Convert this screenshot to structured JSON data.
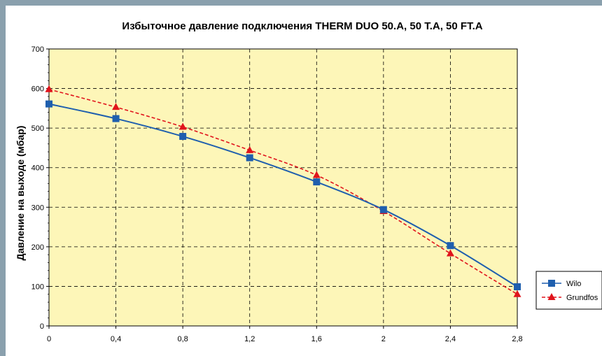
{
  "chart_data": {
    "type": "line",
    "title": "Избыточное давление подключения THERM DUO 50.A, 50 T.A, 50 FT.A",
    "xlabel": "",
    "ylabel": "Давление на выходе (мбар)",
    "x": [
      0,
      0.4,
      0.8,
      1.2,
      1.6,
      2,
      2.4,
      2.8
    ],
    "x_tick_labels": [
      "0",
      "0,4",
      "0,8",
      "1,2",
      "1,6",
      "2",
      "2,4",
      "2,8"
    ],
    "y_ticks": [
      0,
      100,
      200,
      300,
      400,
      500,
      600,
      700
    ],
    "y_tick_labels": [
      "0",
      "100",
      "200",
      "300",
      "400",
      "500",
      "600",
      "700"
    ],
    "xlim": [
      0,
      2.8
    ],
    "ylim": [
      0,
      700
    ],
    "grid": true,
    "legend_position": "right",
    "plot_background": "#fdf6b8",
    "series": [
      {
        "name": "Wilo",
        "color": "#1f5fae",
        "marker": "square",
        "line_style": "solid",
        "values": [
          561,
          524,
          479,
          425,
          364,
          294,
          203,
          99
        ]
      },
      {
        "name": "Grundfos",
        "color": "#e0141c",
        "marker": "triangle",
        "line_style": "dashed",
        "values": [
          598,
          553,
          503,
          444,
          381,
          290,
          183,
          80
        ]
      }
    ]
  }
}
